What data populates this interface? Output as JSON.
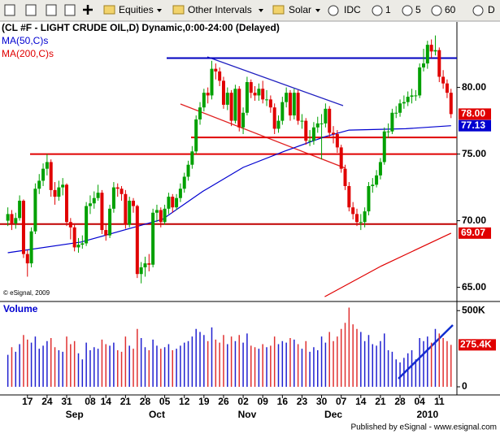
{
  "toolbar": {
    "equities": "Equities",
    "intervals": "Other Intervals",
    "solar": "Solar",
    "idc": "IDC",
    "i1": "1",
    "i5": "5",
    "i60": "60",
    "id": "D"
  },
  "chart_data": {
    "type": "candlestick",
    "title": "(CL #F - LIGHT CRUDE OIL,D) Dynamic,0:00-24:00 (Delayed)",
    "copyright": "© eSignal, 2009",
    "volume_title": "Volume",
    "footer": "Published by eSignal - www.esignal.com",
    "up_color": "#00a000",
    "down_color": "#e00000",
    "vol_up_color": "#2020d0",
    "vol_down_color": "#e03030",
    "xlim": [
      -2,
      114.5
    ],
    "ylim": [
      64,
      84
    ],
    "yticks": [
      {
        "value": 65,
        "label": "65.00"
      },
      {
        "value": 70,
        "label": "70.00"
      },
      {
        "value": 75,
        "label": "75.00"
      },
      {
        "value": 80,
        "label": "80.00"
      }
    ],
    "vol_ylim": [
      0,
      560
    ],
    "vol_ticks": [
      {
        "value": 0,
        "label": "0"
      },
      {
        "value": 500,
        "label": "500K"
      }
    ],
    "xticks": [
      {
        "value": 5,
        "label": "17"
      },
      {
        "value": 10,
        "label": "24"
      },
      {
        "value": 15,
        "label": "31"
      },
      {
        "value": 21,
        "label": "08"
      },
      {
        "value": 25,
        "label": "14"
      },
      {
        "value": 30,
        "label": "21"
      },
      {
        "value": 35,
        "label": "28"
      },
      {
        "value": 40,
        "label": "05"
      },
      {
        "value": 45,
        "label": "12"
      },
      {
        "value": 50,
        "label": "19"
      },
      {
        "value": 55,
        "label": "26"
      },
      {
        "value": 60,
        "label": "02"
      },
      {
        "value": 65,
        "label": "09"
      },
      {
        "value": 70,
        "label": "16"
      },
      {
        "value": 75,
        "label": "23"
      },
      {
        "value": 80,
        "label": "30"
      },
      {
        "value": 85,
        "label": "07"
      },
      {
        "value": 90,
        "label": "14"
      },
      {
        "value": 95,
        "label": "21"
      },
      {
        "value": 100,
        "label": "28"
      },
      {
        "value": 105,
        "label": "04"
      },
      {
        "value": 110,
        "label": "11"
      }
    ],
    "months": [
      {
        "value": 17,
        "label": "Sep"
      },
      {
        "value": 38,
        "label": "Oct"
      },
      {
        "value": 61,
        "label": "Nov"
      },
      {
        "value": 83,
        "label": "Dec"
      },
      {
        "value": 107,
        "label": "2010"
      }
    ],
    "candles": [
      [
        70.0,
        71.0,
        69.6,
        70.5
      ],
      [
        70.5,
        70.8,
        69.3,
        69.8
      ],
      [
        69.8,
        70.6,
        69.4,
        70.2
      ],
      [
        70.2,
        71.9,
        70.0,
        71.5
      ],
      [
        71.5,
        71.6,
        67.2,
        67.5
      ],
      [
        67.5,
        67.8,
        65.8,
        66.8
      ],
      [
        66.8,
        69.5,
        66.5,
        69.2
      ],
      [
        69.2,
        72.8,
        69.0,
        72.4
      ],
      [
        72.4,
        73.5,
        72.0,
        73.0
      ],
      [
        73.0,
        74.3,
        72.6,
        73.9
      ],
      [
        73.9,
        75.0,
        73.4,
        74.4
      ],
      [
        74.4,
        74.6,
        71.8,
        72.3
      ],
      [
        72.3,
        72.9,
        71.2,
        71.8
      ],
      [
        71.8,
        73.0,
        71.5,
        72.5
      ],
      [
        72.5,
        73.2,
        71.9,
        72.7
      ],
      [
        72.7,
        72.8,
        69.6,
        69.9
      ],
      [
        69.9,
        70.2,
        68.6,
        69.5
      ],
      [
        69.5,
        69.8,
        67.7,
        68.0
      ],
      [
        68.0,
        68.7,
        67.6,
        68.2
      ],
      [
        68.2,
        68.9,
        67.9,
        68.3
      ],
      [
        68.3,
        71.4,
        68.1,
        71.1
      ],
      [
        71.1,
        71.9,
        70.5,
        71.3
      ],
      [
        71.3,
        72.2,
        70.9,
        71.7
      ],
      [
        71.7,
        72.7,
        71.5,
        72.1
      ],
      [
        72.1,
        72.3,
        69.0,
        69.3
      ],
      [
        69.3,
        69.7,
        68.5,
        68.9
      ],
      [
        68.9,
        71.2,
        68.7,
        70.9
      ],
      [
        70.9,
        72.9,
        70.6,
        72.5
      ],
      [
        72.5,
        72.8,
        71.8,
        72.4
      ],
      [
        72.4,
        72.6,
        71.5,
        72.0
      ],
      [
        72.0,
        72.3,
        69.4,
        69.7
      ],
      [
        69.7,
        71.8,
        69.5,
        71.5
      ],
      [
        71.5,
        71.7,
        70.6,
        71.1
      ],
      [
        71.1,
        71.2,
        65.7,
        66.0
      ],
      [
        66.0,
        66.9,
        65.3,
        66.5
      ],
      [
        66.5,
        67.3,
        65.8,
        66.8
      ],
      [
        66.8,
        67.5,
        66.2,
        66.7
      ],
      [
        66.7,
        70.9,
        66.5,
        70.6
      ],
      [
        70.6,
        71.2,
        69.9,
        70.8
      ],
      [
        70.8,
        71.0,
        69.5,
        69.9
      ],
      [
        69.9,
        71.2,
        69.7,
        70.9
      ],
      [
        70.9,
        72.1,
        70.5,
        71.8
      ],
      [
        71.8,
        72.0,
        70.6,
        71.0
      ],
      [
        71.0,
        72.0,
        70.8,
        71.7
      ],
      [
        71.7,
        72.8,
        71.4,
        72.4
      ],
      [
        72.4,
        73.6,
        72.1,
        73.3
      ],
      [
        73.3,
        74.5,
        73.0,
        74.2
      ],
      [
        74.2,
        75.6,
        73.9,
        75.2
      ],
      [
        75.2,
        77.9,
        75.0,
        77.6
      ],
      [
        77.6,
        78.9,
        77.2,
        78.5
      ],
      [
        78.5,
        79.9,
        78.2,
        79.6
      ],
      [
        79.6,
        80.0,
        78.8,
        79.4
      ],
      [
        79.4,
        82.0,
        79.1,
        81.4
      ],
      [
        81.4,
        81.8,
        80.6,
        81.2
      ],
      [
        81.2,
        81.5,
        80.1,
        80.5
      ],
      [
        80.5,
        80.8,
        78.4,
        78.7
      ],
      [
        78.7,
        80.0,
        78.3,
        79.6
      ],
      [
        79.6,
        79.8,
        77.1,
        77.5
      ],
      [
        77.5,
        80.2,
        77.3,
        79.9
      ],
      [
        79.9,
        80.1,
        76.7,
        77.0
      ],
      [
        77.0,
        78.5,
        76.5,
        78.1
      ],
      [
        78.1,
        80.8,
        77.9,
        80.4
      ],
      [
        80.4,
        80.6,
        79.2,
        79.6
      ],
      [
        79.6,
        80.1,
        79.0,
        79.4
      ],
      [
        79.4,
        80.3,
        79.0,
        79.9
      ],
      [
        79.9,
        80.5,
        78.8,
        79.1
      ],
      [
        79.1,
        79.8,
        78.6,
        79.1
      ],
      [
        79.1,
        79.4,
        78.1,
        78.5
      ],
      [
        78.5,
        78.8,
        76.5,
        76.9
      ],
      [
        76.9,
        77.9,
        76.6,
        77.5
      ],
      [
        77.5,
        79.3,
        77.2,
        78.9
      ],
      [
        78.9,
        80.0,
        78.5,
        79.6
      ],
      [
        79.6,
        79.8,
        77.5,
        77.9
      ],
      [
        77.9,
        79.9,
        77.6,
        79.6
      ],
      [
        79.6,
        79.8,
        77.2,
        77.5
      ],
      [
        77.5,
        78.0,
        76.9,
        77.5
      ],
      [
        77.5,
        77.7,
        75.7,
        76.0
      ],
      [
        76.0,
        76.8,
        75.6,
        76.0
      ],
      [
        76.0,
        77.4,
        75.7,
        77.0
      ],
      [
        77.0,
        77.8,
        76.6,
        77.3
      ],
      [
        77.3,
        78.0,
        74.6,
        77.3
      ],
      [
        77.3,
        78.8,
        77.0,
        78.4
      ],
      [
        78.4,
        78.6,
        76.3,
        76.6
      ],
      [
        76.6,
        77.1,
        75.8,
        76.5
      ],
      [
        76.5,
        76.8,
        75.1,
        75.5
      ],
      [
        75.5,
        75.7,
        73.6,
        73.9
      ],
      [
        73.9,
        74.2,
        72.3,
        72.6
      ],
      [
        72.6,
        72.9,
        70.7,
        71.0
      ],
      [
        71.0,
        71.4,
        70.1,
        70.5
      ],
      [
        70.5,
        70.9,
        69.6,
        69.9
      ],
      [
        69.9,
        70.5,
        69.3,
        69.9
      ],
      [
        69.9,
        71.0,
        69.5,
        70.7
      ],
      [
        70.7,
        72.9,
        70.4,
        72.6
      ],
      [
        72.6,
        73.2,
        72.1,
        72.7
      ],
      [
        72.7,
        73.8,
        72.5,
        73.4
      ],
      [
        73.4,
        74.7,
        73.1,
        74.4
      ],
      [
        74.4,
        77.0,
        74.2,
        76.7
      ],
      [
        76.7,
        77.3,
        76.2,
        76.7
      ],
      [
        76.7,
        78.4,
        76.5,
        78.1
      ],
      [
        78.1,
        78.6,
        77.7,
        78.1
      ],
      [
        78.1,
        79.1,
        77.8,
        78.8
      ],
      [
        78.8,
        79.4,
        78.4,
        78.9
      ],
      [
        78.9,
        79.7,
        78.6,
        79.3
      ],
      [
        79.3,
        79.9,
        78.8,
        79.4
      ],
      [
        79.4,
        79.8,
        79.0,
        79.4
      ],
      [
        79.4,
        81.8,
        79.2,
        81.5
      ],
      [
        81.5,
        82.9,
        81.2,
        81.8
      ],
      [
        81.8,
        83.5,
        81.4,
        83.2
      ],
      [
        83.2,
        83.6,
        82.2,
        82.7
      ],
      [
        82.7,
        83.9,
        82.4,
        82.8
      ],
      [
        82.8,
        83.0,
        80.4,
        80.8
      ],
      [
        80.8,
        81.3,
        79.9,
        80.3
      ],
      [
        80.3,
        80.6,
        79.2,
        79.6
      ],
      [
        79.6,
        79.9,
        77.7,
        78.0
      ]
    ],
    "volume": [
      210,
      260,
      230,
      280,
      340,
      310,
      290,
      330,
      250,
      270,
      300,
      320,
      260,
      240,
      230,
      330,
      280,
      300,
      220,
      180,
      290,
      240,
      260,
      250,
      310,
      280,
      270,
      290,
      240,
      230,
      330,
      270,
      250,
      380,
      320,
      260,
      240,
      310,
      270,
      250,
      260,
      280,
      240,
      250,
      270,
      290,
      300,
      330,
      380,
      360,
      340,
      300,
      390,
      310,
      290,
      340,
      280,
      330,
      300,
      340,
      290,
      350,
      270,
      260,
      250,
      280,
      260,
      270,
      330,
      280,
      300,
      290,
      320,
      310,
      280,
      250,
      300,
      230,
      260,
      240,
      330,
      290,
      360,
      300,
      330,
      380,
      420,
      520,
      410,
      380,
      360,
      300,
      340,
      280,
      270,
      300,
      350,
      240,
      230,
      180,
      160,
      190,
      220,
      240,
      180,
      320,
      300,
      330,
      290,
      380,
      350,
      320,
      300,
      275.4
    ],
    "ma50": {
      "name": "MA(50,C)s",
      "color": "#0000d0",
      "x": [
        0,
        18.7,
        39.4,
        49.7,
        60,
        70.4,
        80.8,
        87,
        101.5,
        113
      ],
      "values": [
        67.6,
        68.4,
        70.1,
        72.2,
        74.0,
        75.2,
        76.3,
        76.8,
        76.9,
        77.13
      ]
    },
    "ma200": {
      "name": "MA(200,C)s",
      "color": "#e00000",
      "x": [
        80.8,
        95.2,
        113
      ],
      "values": [
        64.3,
        66.6,
        69.07
      ]
    },
    "levels": [
      {
        "value": 82.2,
        "color": "#0000c0"
      },
      {
        "value": 76.25,
        "color": "#e00000"
      },
      {
        "value": 75.0,
        "color": "#e00000"
      },
      {
        "value": 69.75,
        "color": "#c00000"
      }
    ],
    "last_labels": [
      {
        "value": 78.0,
        "label": "78.00",
        "color": "#e00000"
      },
      {
        "value": 77.13,
        "label": "77.13",
        "color": "#0000d0"
      },
      {
        "value": 69.07,
        "label": "69.07",
        "color": "#e00000"
      }
    ],
    "vol_last": {
      "value": 275.4,
      "label": "275.4K",
      "color": "#e00000"
    }
  }
}
